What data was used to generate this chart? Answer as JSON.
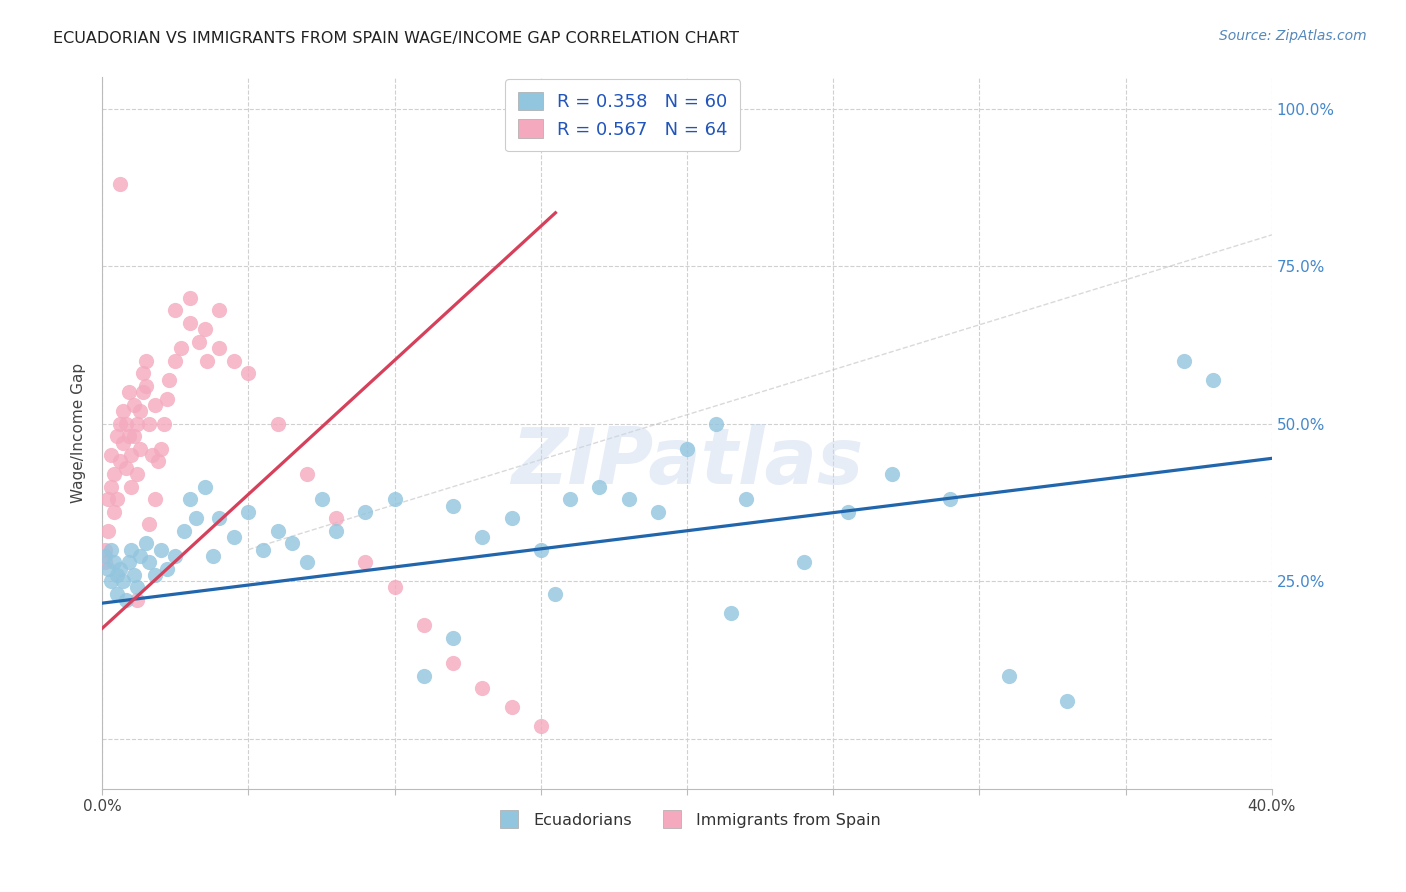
{
  "title": "ECUADORIAN VS IMMIGRANTS FROM SPAIN WAGE/INCOME GAP CORRELATION CHART",
  "source_text": "Source: ZipAtlas.com",
  "ylabel": "Wage/Income Gap",
  "xlim": [
    0.0,
    0.4
  ],
  "ylim": [
    -0.08,
    1.05
  ],
  "xticks": [
    0.0,
    0.05,
    0.1,
    0.15,
    0.2,
    0.25,
    0.3,
    0.35,
    0.4
  ],
  "yticks": [
    0.0,
    0.25,
    0.5,
    0.75,
    1.0
  ],
  "blue_color": "#92c5de",
  "pink_color": "#f4a9be",
  "blue_line_color": "#2166ac",
  "pink_line_color": "#d6405a",
  "grid_color": "#d0d0d0",
  "background_color": "#ffffff",
  "watermark_text": "ZIPatlas",
  "legend_R_blue": "R = 0.358",
  "legend_N_blue": "N = 60",
  "legend_R_pink": "R = 0.567",
  "legend_N_pink": "N = 64",
  "legend_label_blue": "Ecuadorians",
  "legend_label_pink": "Immigrants from Spain",
  "blue_scatter_x": [
    0.001,
    0.002,
    0.003,
    0.003,
    0.004,
    0.005,
    0.005,
    0.006,
    0.007,
    0.008,
    0.009,
    0.01,
    0.011,
    0.012,
    0.013,
    0.015,
    0.016,
    0.018,
    0.02,
    0.022,
    0.025,
    0.028,
    0.03,
    0.032,
    0.035,
    0.038,
    0.04,
    0.045,
    0.05,
    0.055,
    0.06,
    0.065,
    0.07,
    0.075,
    0.08,
    0.09,
    0.1,
    0.11,
    0.12,
    0.13,
    0.14,
    0.15,
    0.16,
    0.17,
    0.18,
    0.19,
    0.2,
    0.21,
    0.22,
    0.24,
    0.255,
    0.27,
    0.29,
    0.31,
    0.33,
    0.12,
    0.155,
    0.215,
    0.38,
    0.37
  ],
  "blue_scatter_y": [
    0.29,
    0.27,
    0.3,
    0.25,
    0.28,
    0.26,
    0.23,
    0.27,
    0.25,
    0.22,
    0.28,
    0.3,
    0.26,
    0.24,
    0.29,
    0.31,
    0.28,
    0.26,
    0.3,
    0.27,
    0.29,
    0.33,
    0.38,
    0.35,
    0.4,
    0.29,
    0.35,
    0.32,
    0.36,
    0.3,
    0.33,
    0.31,
    0.28,
    0.38,
    0.33,
    0.36,
    0.38,
    0.1,
    0.16,
    0.32,
    0.35,
    0.3,
    0.38,
    0.4,
    0.38,
    0.36,
    0.46,
    0.5,
    0.38,
    0.28,
    0.36,
    0.42,
    0.38,
    0.1,
    0.06,
    0.37,
    0.23,
    0.2,
    0.57,
    0.6
  ],
  "pink_scatter_x": [
    0.001,
    0.001,
    0.002,
    0.002,
    0.003,
    0.003,
    0.004,
    0.004,
    0.005,
    0.005,
    0.006,
    0.006,
    0.007,
    0.007,
    0.008,
    0.008,
    0.009,
    0.009,
    0.01,
    0.01,
    0.011,
    0.011,
    0.012,
    0.012,
    0.013,
    0.013,
    0.014,
    0.014,
    0.015,
    0.015,
    0.016,
    0.017,
    0.018,
    0.019,
    0.02,
    0.021,
    0.022,
    0.023,
    0.025,
    0.027,
    0.03,
    0.033,
    0.036,
    0.04,
    0.045,
    0.05,
    0.06,
    0.07,
    0.08,
    0.09,
    0.1,
    0.11,
    0.12,
    0.13,
    0.14,
    0.15,
    0.025,
    0.03,
    0.035,
    0.04,
    0.016,
    0.018,
    0.006,
    0.012
  ],
  "pink_scatter_y": [
    0.3,
    0.28,
    0.33,
    0.38,
    0.4,
    0.45,
    0.36,
    0.42,
    0.48,
    0.38,
    0.44,
    0.5,
    0.47,
    0.52,
    0.43,
    0.5,
    0.55,
    0.48,
    0.45,
    0.4,
    0.53,
    0.48,
    0.5,
    0.42,
    0.46,
    0.52,
    0.55,
    0.58,
    0.56,
    0.6,
    0.5,
    0.45,
    0.53,
    0.44,
    0.46,
    0.5,
    0.54,
    0.57,
    0.6,
    0.62,
    0.66,
    0.63,
    0.6,
    0.62,
    0.6,
    0.58,
    0.5,
    0.42,
    0.35,
    0.28,
    0.24,
    0.18,
    0.12,
    0.08,
    0.05,
    0.02,
    0.68,
    0.7,
    0.65,
    0.68,
    0.34,
    0.38,
    0.88,
    0.22
  ],
  "blue_line_x": [
    0.0,
    0.4
  ],
  "blue_line_y": [
    0.215,
    0.445
  ],
  "pink_line_x": [
    0.0,
    0.155
  ],
  "pink_line_y": [
    0.175,
    0.835
  ],
  "ref_line_x": [
    0.05,
    0.4
  ],
  "ref_line_y": [
    0.3,
    0.8
  ]
}
